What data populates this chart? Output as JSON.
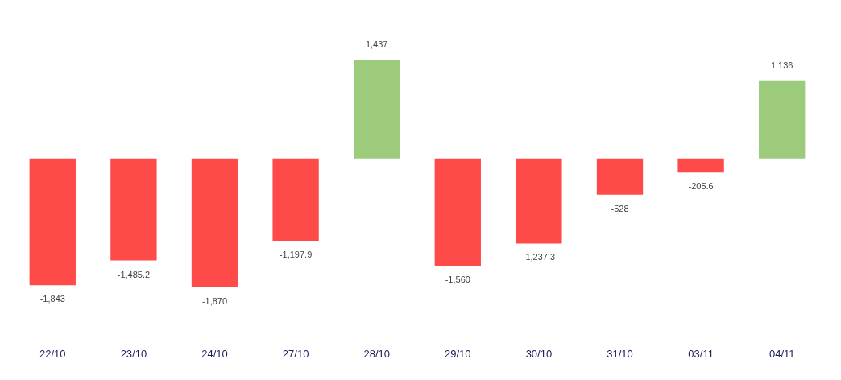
{
  "chart_data": {
    "type": "bar",
    "categories": [
      "22/10",
      "23/10",
      "24/10",
      "27/10",
      "28/10",
      "29/10",
      "30/10",
      "31/10",
      "03/11",
      "04/11"
    ],
    "values": [
      -1843,
      -1485.2,
      -1870,
      -1197.9,
      1437,
      -1560,
      -1237.3,
      -528,
      -205.6,
      1136
    ],
    "colors": [
      "#ff4a4a",
      "#ff4a4a",
      "#ff4a4a",
      "#ff4a4a",
      "#9bcb7b",
      "#ff4a4a",
      "#ff4a4a",
      "#ff4a4a",
      "#ff4a4a",
      "#9bcb7b"
    ],
    "value_labels": [
      "-1,843",
      "-1,485.2",
      "-1,870",
      "-1,197.9",
      "1,437",
      "-1,560",
      "-1,237.3",
      "-528",
      "-205.6",
      "1,136"
    ]
  }
}
